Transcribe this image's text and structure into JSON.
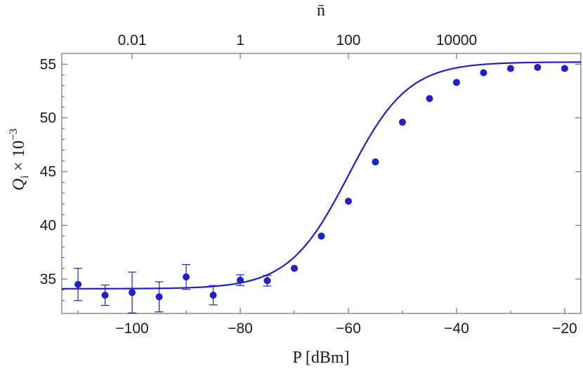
{
  "chart_data": {
    "type": "scatter",
    "x": [
      -110,
      -105,
      -100,
      -95,
      -90,
      -85,
      -80,
      -75,
      -70,
      -65,
      -60,
      -55,
      -50,
      -45,
      -40,
      -35,
      -30,
      -25,
      -20
    ],
    "y": [
      34.5,
      33.5,
      33.75,
      33.35,
      35.2,
      33.5,
      34.9,
      34.85,
      36.0,
      39.0,
      42.25,
      45.9,
      49.6,
      51.8,
      53.3,
      54.2,
      54.6,
      54.7,
      54.6
    ],
    "error": [
      1.5,
      0.95,
      1.9,
      1.4,
      1.15,
      0.9,
      0.5,
      0.5,
      0.25,
      0.2,
      0.2,
      0.2,
      0.2,
      0.2,
      0.2,
      0.2,
      0.2,
      0.2,
      0.2
    ],
    "fit": {
      "type": "line",
      "y_low": 34.1,
      "y_high": 55.2,
      "x_mid": -60,
      "width": 5.5
    },
    "xlabel": "P [dBm]",
    "ylabel_parts": [
      "Q",
      "i",
      " × 10",
      "−3"
    ],
    "top_axis_label": "n̄",
    "top_ticks": [
      {
        "label": "0.01",
        "p": -100
      },
      {
        "label": "1",
        "p": -80
      },
      {
        "label": "100",
        "p": -60
      },
      {
        "label": "10000",
        "p": -40
      }
    ],
    "x_ticks": [
      "−100",
      "−80",
      "−60",
      "−40",
      "−20"
    ],
    "x_tick_values": [
      -100,
      -80,
      -60,
      -40,
      -20
    ],
    "y_ticks": [
      "35",
      "40",
      "45",
      "50",
      "55"
    ],
    "y_tick_values": [
      35,
      40,
      45,
      50,
      55
    ],
    "xlim": [
      -113,
      -17
    ],
    "ylim": [
      31.8,
      56.0
    ],
    "grid": false,
    "colors": {
      "series": "#1f1fcc",
      "frame": "#555555"
    }
  }
}
